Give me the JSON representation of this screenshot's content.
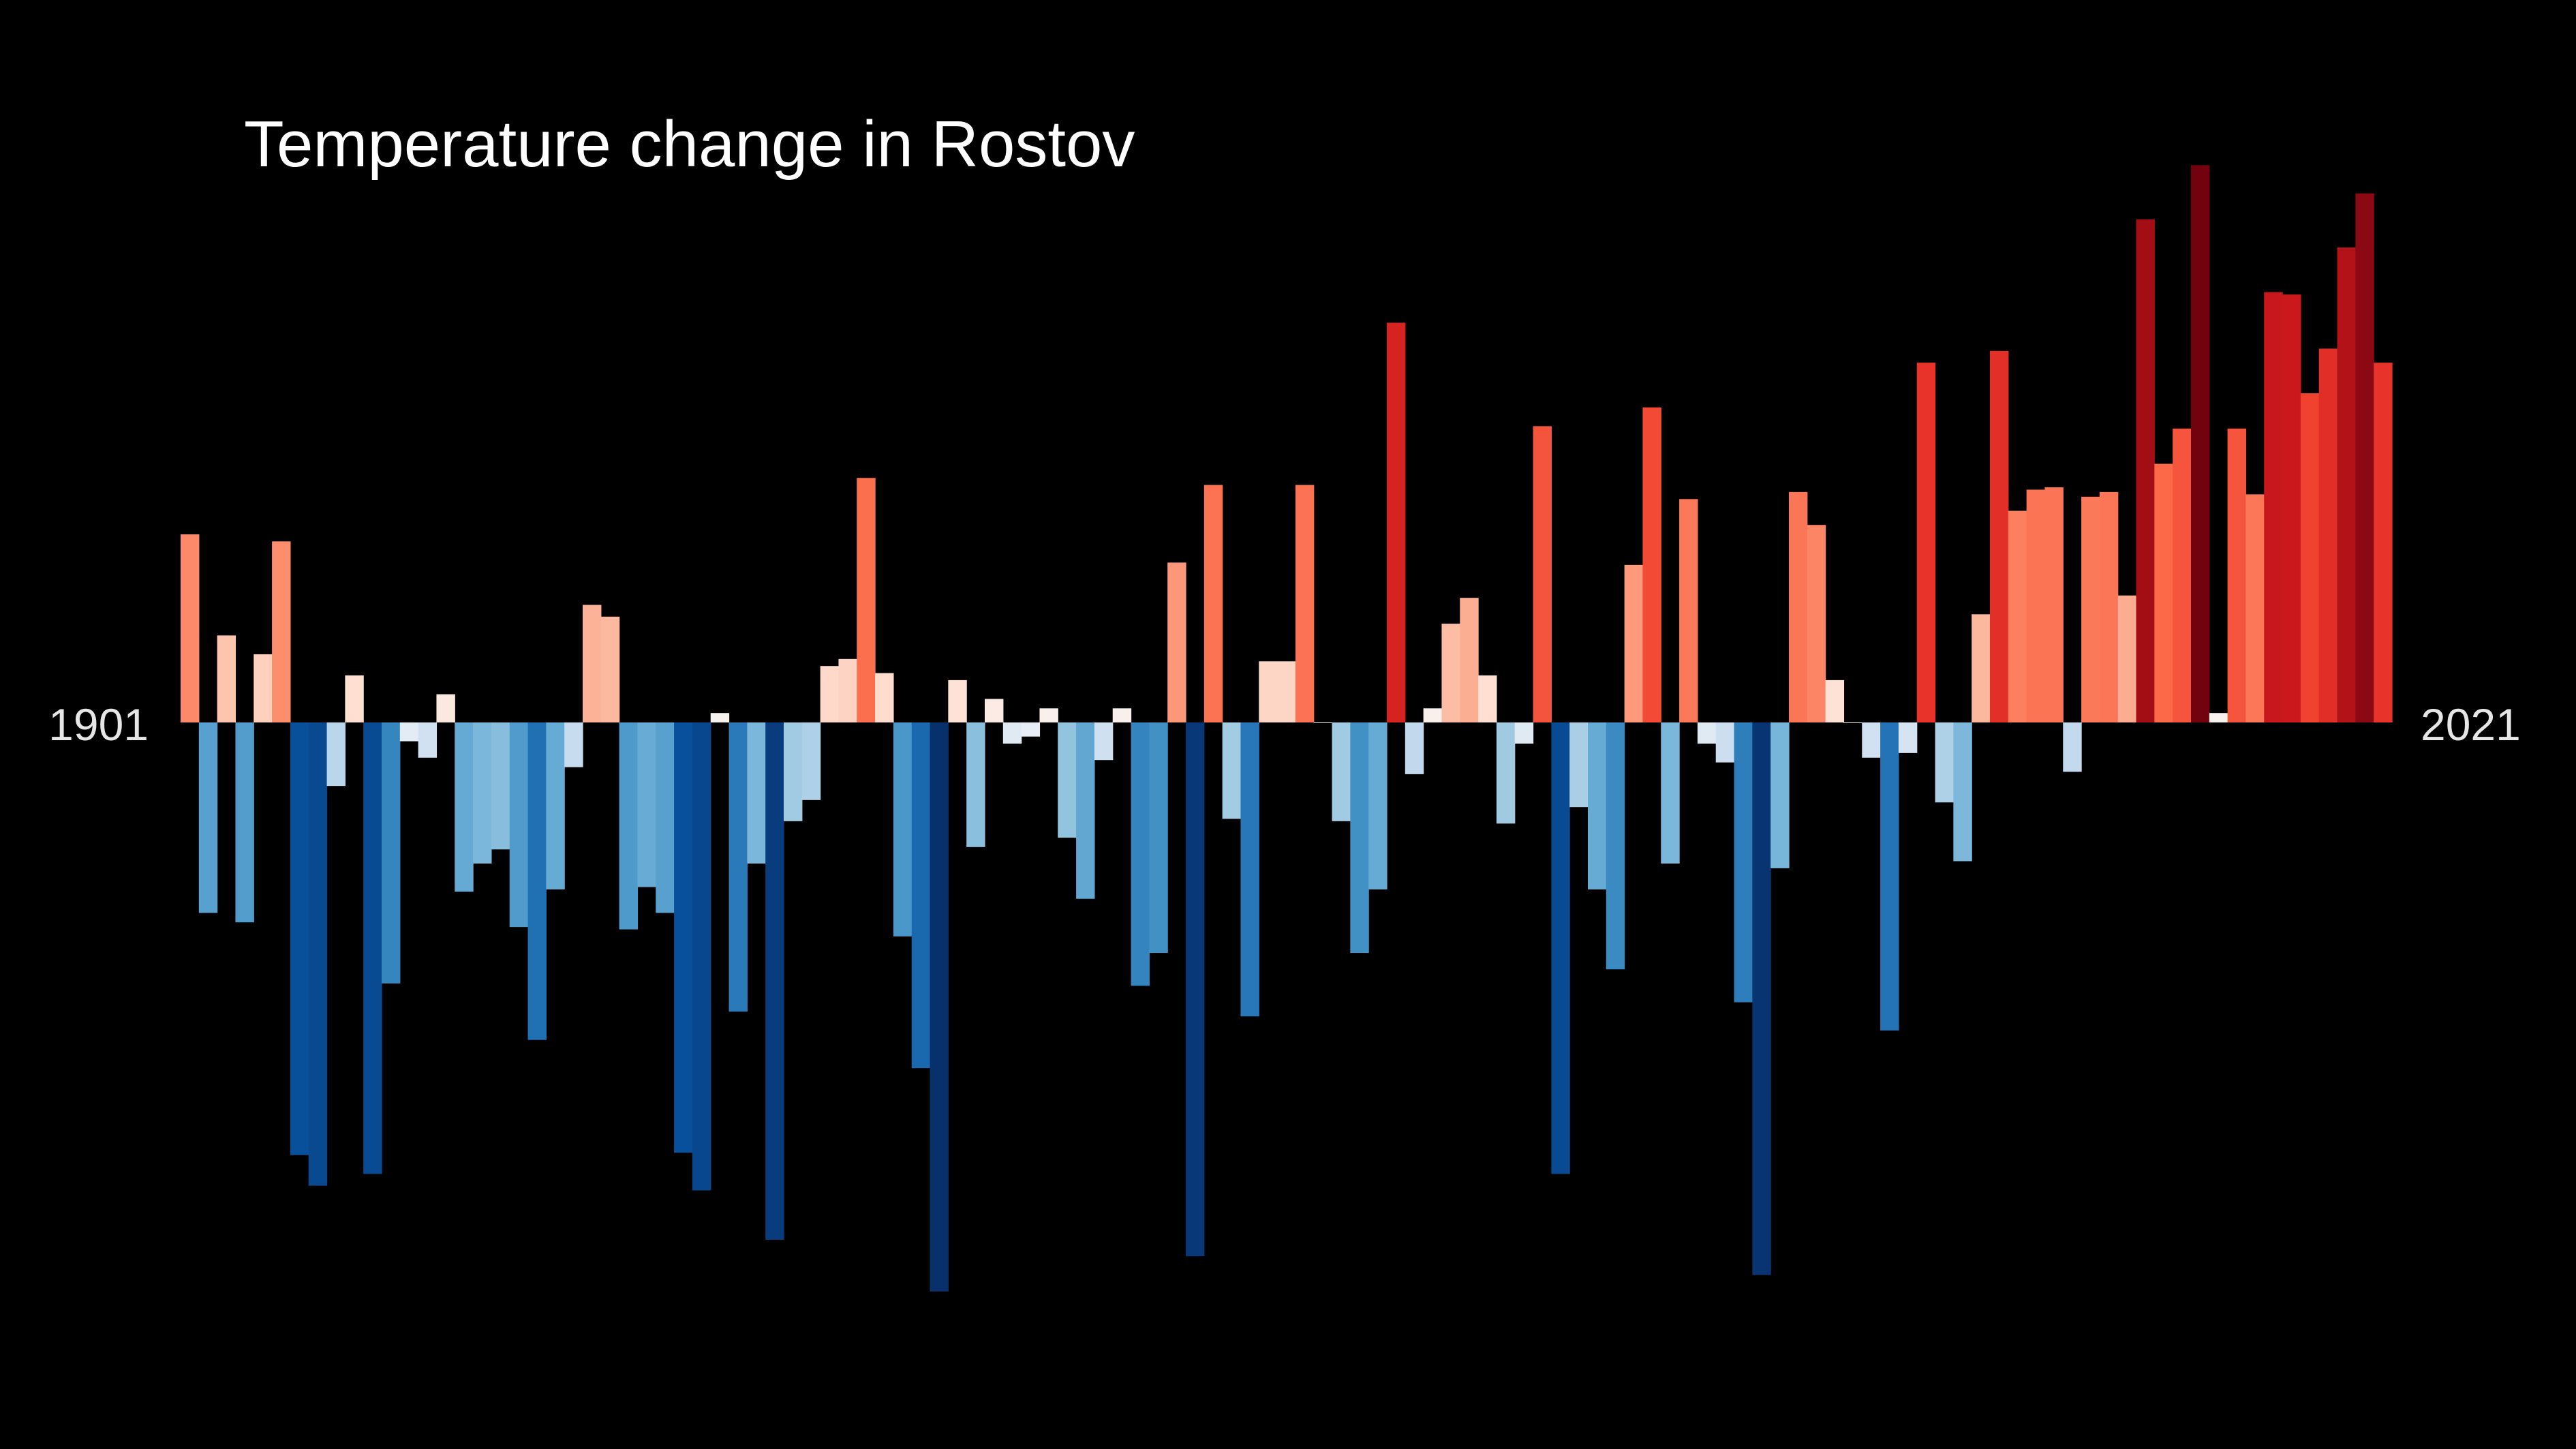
{
  "chart_data": {
    "type": "bar",
    "title": "Temperature change in Rostov",
    "start_label": "1901",
    "end_label": "2021",
    "first_year": 1901,
    "last_year": 2021,
    "axis": "hidden",
    "grid": false,
    "legend": "none",
    "background_color": "#000000",
    "text_color": "#ffffff",
    "colormap": "RdBu_r (blue = colder, red = warmer)",
    "ylim": [
      -2.42,
      2.42
    ],
    "x": [
      1901,
      1902,
      1903,
      1904,
      1905,
      1906,
      1907,
      1908,
      1909,
      1910,
      1911,
      1912,
      1913,
      1914,
      1915,
      1916,
      1917,
      1918,
      1919,
      1920,
      1921,
      1922,
      1923,
      1924,
      1925,
      1926,
      1927,
      1928,
      1929,
      1930,
      1931,
      1932,
      1933,
      1934,
      1935,
      1936,
      1937,
      1938,
      1939,
      1940,
      1941,
      1942,
      1943,
      1944,
      1945,
      1946,
      1947,
      1948,
      1949,
      1950,
      1951,
      1952,
      1953,
      1954,
      1955,
      1956,
      1957,
      1958,
      1959,
      1960,
      1961,
      1962,
      1963,
      1964,
      1965,
      1966,
      1967,
      1968,
      1969,
      1970,
      1971,
      1972,
      1973,
      1974,
      1975,
      1976,
      1977,
      1978,
      1979,
      1980,
      1981,
      1982,
      1983,
      1984,
      1985,
      1986,
      1987,
      1988,
      1989,
      1990,
      1991,
      1992,
      1993,
      1994,
      1995,
      1996,
      1997,
      1998,
      1999,
      2000,
      2001,
      2002,
      2003,
      2004,
      2005,
      2006,
      2007,
      2008,
      2009,
      2010,
      2011,
      2012,
      2013,
      2014,
      2015,
      2016,
      2017,
      2018,
      2019,
      2020,
      2021
    ],
    "values": [
      0.8,
      -0.81,
      0.37,
      -0.85,
      0.29,
      0.77,
      -1.84,
      -1.97,
      -0.27,
      0.2,
      -1.92,
      -1.11,
      -0.08,
      -0.15,
      0.12,
      -0.72,
      -0.6,
      -0.54,
      -0.87,
      -1.35,
      -0.71,
      -0.19,
      0.5,
      0.45,
      -0.88,
      -0.7,
      -0.81,
      -1.83,
      -1.99,
      0.04,
      -1.23,
      -0.6,
      -2.2,
      -0.42,
      -0.33,
      0.24,
      0.27,
      1.04,
      0.21,
      -0.91,
      -1.47,
      -2.42,
      0.18,
      -0.53,
      0.1,
      -0.09,
      -0.06,
      0.06,
      -0.49,
      -0.75,
      -0.16,
      0.06,
      -1.12,
      -0.98,
      0.68,
      -2.27,
      1.01,
      -0.41,
      -1.25,
      0.26,
      0.26,
      1.01,
      0.0,
      -0.42,
      -0.98,
      -0.71,
      1.7,
      -0.22,
      0.06,
      0.42,
      0.53,
      0.2,
      -0.43,
      -0.09,
      1.26,
      -1.92,
      -0.36,
      -0.71,
      -1.05,
      0.67,
      1.34,
      -0.6,
      0.95,
      -0.09,
      -0.17,
      -1.19,
      -2.35,
      -0.62,
      0.98,
      0.84,
      0.18,
      0.0,
      -0.15,
      -1.31,
      -0.13,
      1.53,
      -0.34,
      -0.59,
      0.46,
      1.58,
      0.9,
      0.99,
      1.0,
      -0.21,
      0.96,
      0.98,
      0.54,
      2.14,
      1.1,
      1.25,
      2.37,
      0.04,
      1.25,
      0.97,
      1.83,
      1.82,
      1.4,
      1.59,
      2.02,
      2.25,
      1.53
    ]
  }
}
